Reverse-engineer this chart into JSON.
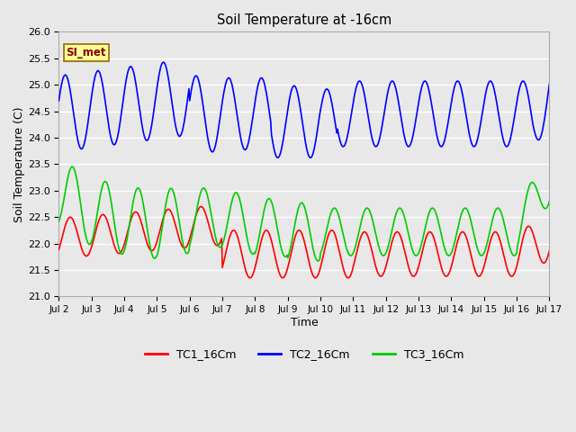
{
  "title": "Soil Temperature at -16cm",
  "xlabel": "Time",
  "ylabel": "Soil Temperature (C)",
  "ylim": [
    21.0,
    26.0
  ],
  "yticks": [
    21.0,
    21.5,
    22.0,
    22.5,
    23.0,
    23.5,
    24.0,
    24.5,
    25.0,
    25.5,
    26.0
  ],
  "xtick_labels": [
    "Jul 2",
    "Jul 3",
    "Jul 4",
    "Jul 5",
    "Jul 6",
    "Jul 7",
    "Jul 8",
    "Jul 9",
    "Jul 10",
    "Jul 11",
    "Jul 12",
    "Jul 13",
    "Jul 14",
    "Jul 15",
    "Jul 16",
    "Jul 17"
  ],
  "legend_labels": [
    "TC1_16Cm",
    "TC2_16Cm",
    "TC3_16Cm"
  ],
  "legend_colors": [
    "#ff0000",
    "#0000ff",
    "#00cc00"
  ],
  "annotation_text": "SI_met",
  "annotation_bg": "#ffff99",
  "annotation_border": "#996600",
  "bg_color": "#e8e8e8",
  "grid_color": "#ffffff",
  "line_width": 1.2,
  "n_days": 15,
  "pts_per_day": 48
}
